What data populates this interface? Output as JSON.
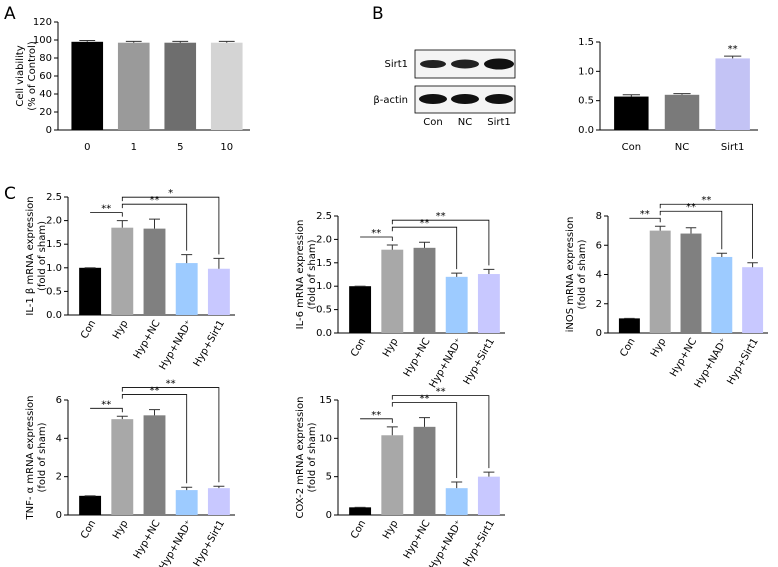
{
  "panel_labels": [
    "A",
    "B",
    "C"
  ],
  "blot": {
    "rows": [
      "Sirt1",
      "β-actin"
    ],
    "lanes": [
      "Con",
      "NC",
      "Sirt1"
    ]
  },
  "chart_data": [
    {
      "type": "bar",
      "y_label": [
        "Cell viability",
        "(% of Control)"
      ],
      "categories": [
        "0",
        "1",
        "5",
        "10"
      ],
      "values": [
        98,
        97,
        97,
        97
      ],
      "errors": [
        1.5,
        1.5,
        1.5,
        1.5
      ],
      "colors": [
        "#000000",
        "#9a9a9a",
        "#6e6e6e",
        "#d4d4d4"
      ],
      "ylim": [
        0,
        120
      ],
      "yticks": [
        0,
        20,
        40,
        60,
        80,
        100,
        120
      ]
    },
    {
      "type": "bar",
      "categories": [
        "Con",
        "NC",
        "Sirt1"
      ],
      "values": [
        0.57,
        0.6,
        1.22
      ],
      "errors": [
        0.03,
        0.02,
        0.04
      ],
      "colors": [
        "#000000",
        "#7a7a7a",
        "#c3c3f5"
      ],
      "ylim": [
        0,
        1.5
      ],
      "yticks": [
        {
          "value": 0,
          "label": "0.0"
        },
        {
          "value": 0.5,
          "label": "0.5"
        },
        {
          "value": 1,
          "label": "1.0"
        },
        {
          "value": 1.5,
          "label": "1.5"
        }
      ],
      "significance": [
        {
          "text": "**",
          "category": "Sirt1"
        }
      ]
    },
    {
      "type": "bar",
      "y_label": [
        "IL-1 β mRNA expression",
        "(fold of sham)"
      ],
      "categories": [
        "Con",
        "Hyp",
        "Hyp+NC",
        "Hyp+NAD⁺",
        "Hyp+Sirt1"
      ],
      "values": [
        1.0,
        1.85,
        1.83,
        1.1,
        0.98
      ],
      "errors": [
        0,
        0.15,
        0.2,
        0.18,
        0.22
      ],
      "colors": [
        "#000000",
        "#a8a8a8",
        "#808080",
        "#9dcbff",
        "#c8c8ff"
      ],
      "ylim": [
        0,
        2.5
      ],
      "yticks": [
        {
          "value": 0,
          "label": "0.0"
        },
        {
          "value": 0.5,
          "label": "0.5"
        },
        {
          "value": 1,
          "label": "1.0"
        },
        {
          "value": 1.5,
          "label": "1.5"
        },
        {
          "value": 2,
          "label": "2.0"
        },
        {
          "value": 2.5,
          "label": "2.5"
        }
      ],
      "brackets": [
        {
          "text": "**",
          "between": [
            "Con",
            "Hyp"
          ]
        },
        {
          "text": "**",
          "between": [
            "Hyp",
            "Hyp+NAD⁺"
          ]
        },
        {
          "text": "*",
          "between": [
            "Hyp",
            "Hyp+Sirt1"
          ]
        }
      ]
    },
    {
      "type": "bar",
      "y_label": [
        "IL-6 mRNA expression",
        "(fold of sham)"
      ],
      "categories": [
        "Con",
        "Hyp",
        "Hyp+NC",
        "Hyp+NAD⁺",
        "Hyp+Sirt1"
      ],
      "values": [
        1.0,
        1.78,
        1.82,
        1.2,
        1.26
      ],
      "errors": [
        0,
        0.1,
        0.12,
        0.08,
        0.1
      ],
      "colors": [
        "#000000",
        "#a8a8a8",
        "#808080",
        "#9dcbff",
        "#c8c8ff"
      ],
      "ylim": [
        0,
        2.5
      ],
      "yticks": [
        {
          "value": 0,
          "label": "0.0"
        },
        {
          "value": 0.5,
          "label": "0.5"
        },
        {
          "value": 1,
          "label": "1.0"
        },
        {
          "value": 1.5,
          "label": "1.5"
        },
        {
          "value": 2,
          "label": "2.0"
        },
        {
          "value": 2.5,
          "label": "2.5"
        }
      ],
      "brackets": [
        {
          "text": "**",
          "between": [
            "Con",
            "Hyp"
          ]
        },
        {
          "text": "**",
          "between": [
            "Hyp",
            "Hyp+NAD⁺"
          ]
        },
        {
          "text": "**",
          "between": [
            "Hyp",
            "Hyp+Sirt1"
          ]
        }
      ]
    },
    {
      "type": "bar",
      "y_label": [
        "iNOS mRNA expression",
        "(fold of sham)"
      ],
      "categories": [
        "Con",
        "Hyp",
        "Hyp+NC",
        "Hyp+NAD⁺",
        "Hyp+Sirt1"
      ],
      "values": [
        1.0,
        7.0,
        6.8,
        5.2,
        4.5
      ],
      "errors": [
        0,
        0.3,
        0.4,
        0.25,
        0.3
      ],
      "colors": [
        "#000000",
        "#a8a8a8",
        "#808080",
        "#9dcbff",
        "#c8c8ff"
      ],
      "ylim": [
        0,
        8
      ],
      "yticks": [
        0,
        2,
        4,
        6,
        8
      ],
      "brackets": [
        {
          "text": "**",
          "between": [
            "Con",
            "Hyp"
          ]
        },
        {
          "text": "**",
          "between": [
            "Hyp",
            "Hyp+NAD⁺"
          ]
        },
        {
          "text": "**",
          "between": [
            "Hyp",
            "Hyp+Sirt1"
          ]
        }
      ]
    },
    {
      "type": "bar",
      "y_label": [
        "TNF- α mRNA expression",
        "(fold of sham)"
      ],
      "categories": [
        "Con",
        "Hyp",
        "Hyp+NC",
        "Hyp+NAD⁺",
        "Hyp+Sirt1"
      ],
      "values": [
        1.0,
        5.0,
        5.2,
        1.3,
        1.4
      ],
      "errors": [
        0,
        0.15,
        0.3,
        0.15,
        0.1
      ],
      "colors": [
        "#000000",
        "#a8a8a8",
        "#808080",
        "#9dcbff",
        "#c8c8ff"
      ],
      "ylim": [
        0,
        6
      ],
      "yticks": [
        0,
        2,
        4,
        6
      ],
      "brackets": [
        {
          "text": "**",
          "between": [
            "Con",
            "Hyp"
          ]
        },
        {
          "text": "**",
          "between": [
            "Hyp",
            "Hyp+NAD⁺"
          ]
        },
        {
          "text": "**",
          "between": [
            "Hyp",
            "Hyp+Sirt1"
          ]
        }
      ]
    },
    {
      "type": "bar",
      "y_label": [
        "COX-2 mRNA expression",
        "(fold of sham)"
      ],
      "categories": [
        "Con",
        "Hyp",
        "Hyp+NC",
        "Hyp+NAD⁺",
        "Hyp+Sirt1"
      ],
      "values": [
        1.0,
        10.4,
        11.5,
        3.5,
        5.0
      ],
      "errors": [
        0,
        1.1,
        1.2,
        0.8,
        0.6
      ],
      "colors": [
        "#000000",
        "#a8a8a8",
        "#808080",
        "#9dcbff",
        "#c8c8ff"
      ],
      "ylim": [
        0,
        15
      ],
      "yticks": [
        0,
        5,
        10,
        15
      ],
      "brackets": [
        {
          "text": "**",
          "between": [
            "Con",
            "Hyp"
          ]
        },
        {
          "text": "**",
          "between": [
            "Hyp",
            "Hyp+NAD⁺"
          ]
        },
        {
          "text": "**",
          "between": [
            "Hyp",
            "Hyp+Sirt1"
          ]
        }
      ]
    }
  ]
}
